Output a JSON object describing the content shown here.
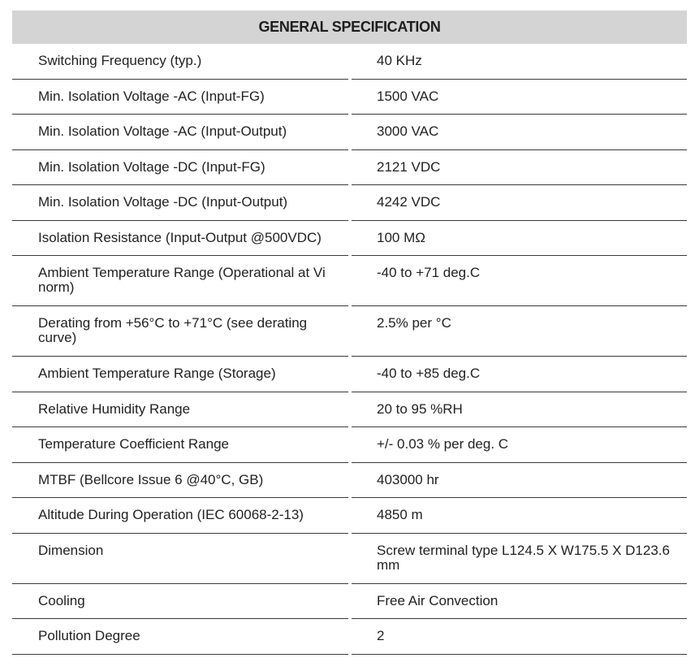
{
  "title": "GENERAL SPECIFICATION",
  "rows": [
    {
      "label": "Switching Frequency (typ.)",
      "value": "40 KHz"
    },
    {
      "label": "Min. Isolation Voltage -AC (Input-FG)",
      "value": "1500 VAC"
    },
    {
      "label": "Min. Isolation Voltage -AC (Input-Output)",
      "value": "3000 VAC"
    },
    {
      "label": "Min. Isolation Voltage -DC (Input-FG)",
      "value": "2121 VDC"
    },
    {
      "label": "Min. Isolation Voltage -DC (Input-Output)",
      "value": "4242 VDC"
    },
    {
      "label": "Isolation Resistance (Input-Output @500VDC)",
      "value": "100 MΩ"
    },
    {
      "label": "Ambient Temperature Range (Operational at Vi norm)",
      "value": "-40 to +71 deg.C"
    },
    {
      "label": "Derating from +56°C to +71°C (see derating curve)",
      "value": "2.5% per °C"
    },
    {
      "label": "Ambient Temperature Range (Storage)",
      "value": "-40 to +85 deg.C"
    },
    {
      "label": "Relative Humidity Range",
      "value": "20 to 95 %RH"
    },
    {
      "label": "Temperature Coefficient Range",
      "value": "+/- 0.03 % per deg. C"
    },
    {
      "label": "MTBF (Bellcore Issue 6 @40°C, GB)",
      "value": "403000 hr"
    },
    {
      "label": "Altitude During Operation (IEC 60068-2-13)",
      "value": "4850 m"
    },
    {
      "label": "Dimension",
      "value": "Screw terminal type L124.5 X W175.5 X D123.6 mm"
    },
    {
      "label": "Cooling",
      "value": "Free Air Convection"
    },
    {
      "label": "Pollution Degree",
      "value": "2"
    }
  ]
}
